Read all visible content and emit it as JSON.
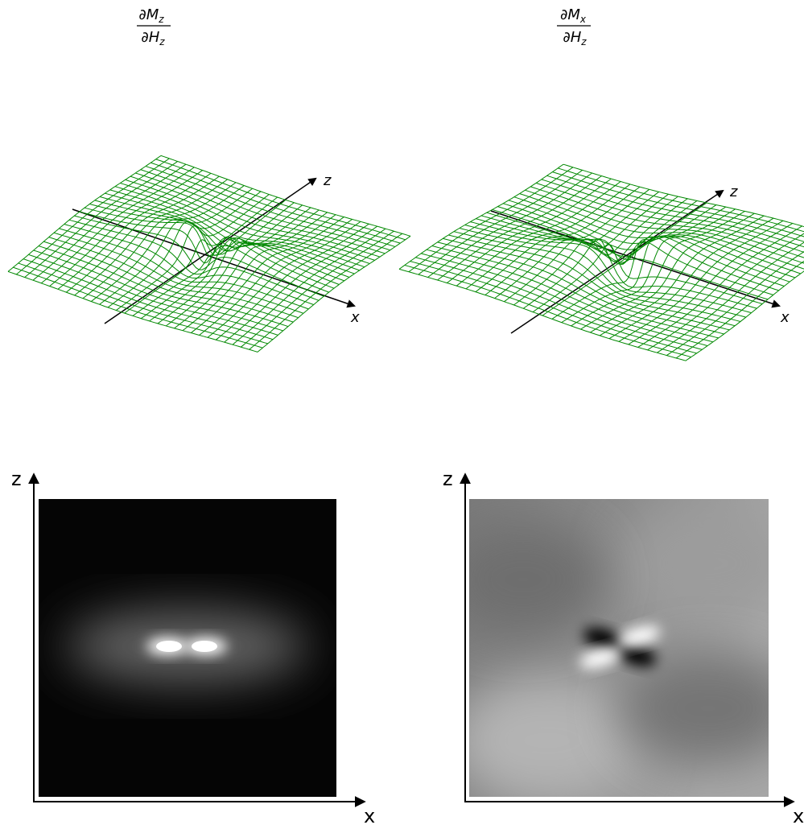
{
  "panels": [
    {
      "numerator": "∂M",
      "numerator_sub": "z",
      "denominator": "∂H",
      "denominator_sub": "z",
      "axis_z": "z",
      "axis_x": "x"
    },
    {
      "numerator": "∂M",
      "numerator_sub": "x",
      "denominator": "∂H",
      "denominator_sub": "z",
      "axis_z": "z",
      "axis_x": "x"
    }
  ],
  "maps": [
    {
      "axis_z": "z",
      "axis_x": "x"
    },
    {
      "axis_z": "z",
      "axis_x": "x"
    }
  ]
}
